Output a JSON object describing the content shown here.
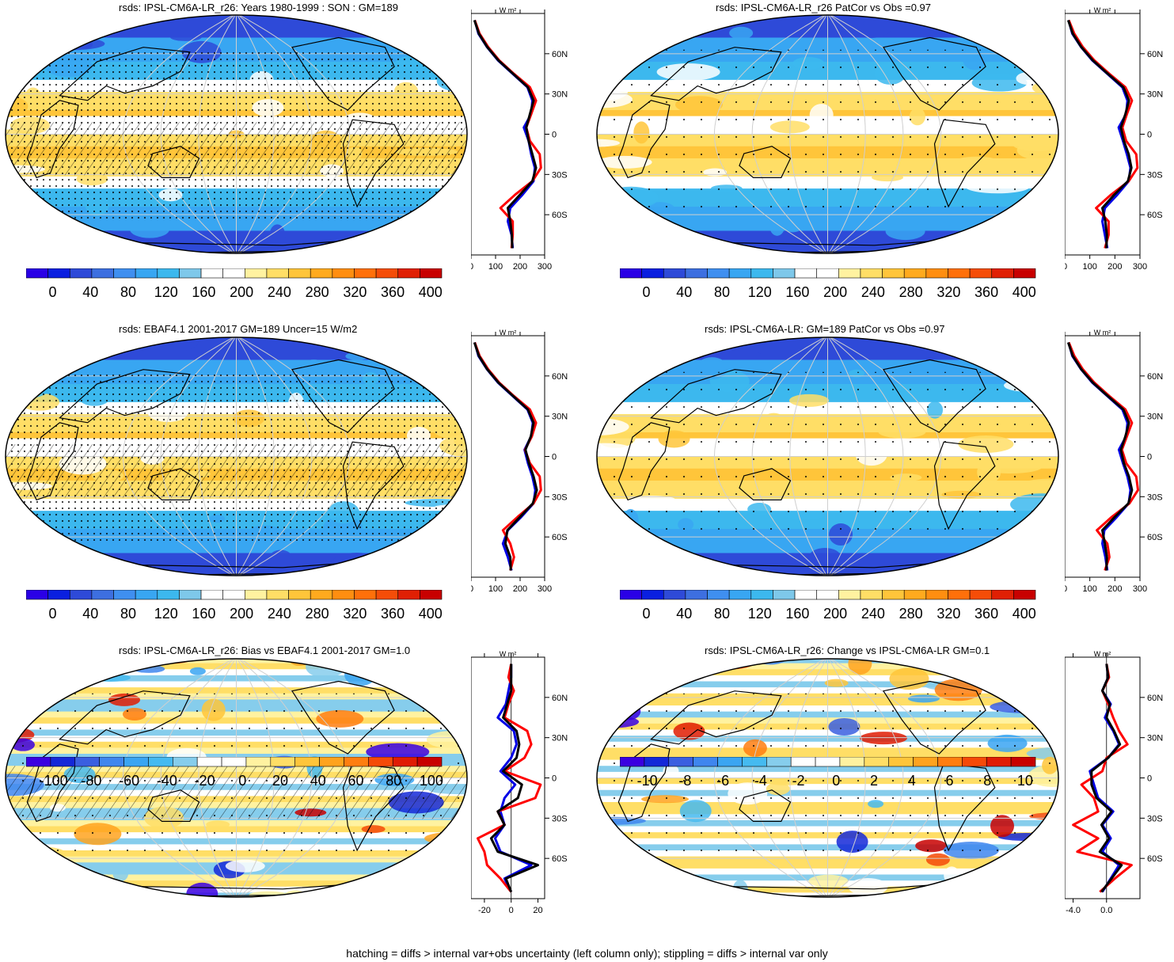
{
  "footer": "hatching = diffs > internal var+obs uncertainty (left column only); stippling = diffs > internal var only",
  "colors": {
    "seq": [
      "#2a00e6",
      "#0a1fe0",
      "#2e4ad8",
      "#3d6fe0",
      "#3f8ff0",
      "#38a6f2",
      "#3cb8ee",
      "#7ec8ea",
      "#ffffff",
      "#ffffff",
      "#fff2a0",
      "#ffde66",
      "#ffc53a",
      "#ffaa1e",
      "#ff8e10",
      "#ff700a",
      "#f54d08",
      "#e02004",
      "#c80000"
    ],
    "div": [
      "#3a00e0",
      "#1428d8",
      "#3a5fe0",
      "#3f86ee",
      "#3aa5f2",
      "#45baf0",
      "#86cdec",
      "#ffffff",
      "#ffffff",
      "#fff2a0",
      "#ffde66",
      "#ffc53a",
      "#ffa31e",
      "#ff7e10",
      "#f54a08",
      "#e01c04",
      "#c80000"
    ],
    "model": "#0000e6",
    "obs": "#ff0000",
    "mean": "#000000"
  },
  "panels": [
    {
      "id": "p1",
      "title": "rsds: IPSL-CM6A-LR_r26: Years 1980-1999 : SON : GM=189",
      "scheme": "seq",
      "hatch": true,
      "stipple": "dense",
      "cbar_labels": [
        "0",
        "40",
        "80",
        "120",
        "160",
        "200",
        "240",
        "280",
        "320",
        "360",
        "400"
      ],
      "profile_xticks": [
        "0",
        "100",
        "200",
        "300"
      ],
      "profile_unit": "W m²",
      "lat_labels": [
        "60N",
        "30N",
        "0",
        "30S",
        "60S"
      ],
      "chart_data": {
        "type": "line",
        "xlim": [
          0,
          300
        ],
        "ylabel": "latitude",
        "lat": [
          -85,
          -75,
          -65,
          -55,
          -45,
          -35,
          -25,
          -15,
          -5,
          5,
          15,
          25,
          35,
          45,
          55,
          65,
          75,
          85
        ],
        "series": [
          {
            "name": "model",
            "values": [
              170,
              165,
              150,
              160,
              210,
              255,
              260,
              245,
              235,
              215,
              245,
              250,
              230,
              170,
              110,
              65,
              30,
              15
            ]
          },
          {
            "name": "obs",
            "values": [
              165,
              170,
              170,
              120,
              180,
              250,
              285,
              280,
              240,
              225,
              245,
              265,
              240,
              175,
              115,
              70,
              35,
              15
            ]
          },
          {
            "name": "mean",
            "values": [
              168,
              166,
              160,
              150,
              200,
              250,
              265,
              250,
              235,
              225,
              240,
              255,
              232,
              172,
              112,
              66,
              32,
              14
            ]
          }
        ]
      }
    },
    {
      "id": "p2",
      "title": "rsds: IPSL-CM6A-LR_r26 PatCor vs Obs =0.97",
      "scheme": "seq",
      "hatch": false,
      "stipple": "sparse",
      "cbar_labels": [
        "0",
        "40",
        "80",
        "120",
        "160",
        "200",
        "240",
        "280",
        "320",
        "360",
        "400"
      ],
      "profile_xticks": [
        "0",
        "100",
        "200",
        "300"
      ],
      "profile_unit": "W m²",
      "lat_labels": [
        "60N",
        "30N",
        "0",
        "30S",
        "60S"
      ],
      "chart_data": {
        "type": "line",
        "xlim": [
          0,
          300
        ],
        "lat": [
          -85,
          -75,
          -65,
          -55,
          -45,
          -35,
          -25,
          -15,
          -5,
          5,
          15,
          25,
          35,
          45,
          55,
          65,
          75,
          85
        ],
        "series": [
          {
            "name": "model",
            "values": [
              170,
              160,
              150,
              160,
              210,
              255,
              262,
              248,
              232,
              215,
              245,
              250,
              230,
              170,
              110,
              65,
              30,
              15
            ]
          },
          {
            "name": "obs",
            "values": [
              160,
              175,
              175,
              125,
              185,
              255,
              290,
              285,
              245,
              230,
              248,
              268,
              242,
              178,
              118,
              72,
              38,
              16
            ]
          },
          {
            "name": "mean",
            "values": [
              166,
              168,
              162,
              150,
              198,
              252,
              266,
              255,
              236,
              224,
              242,
              256,
              234,
              172,
              112,
              66,
              32,
              14
            ]
          }
        ]
      }
    },
    {
      "id": "p3",
      "title": "rsds: EBAF4.1 2001-2017 GM=189 Uncer=15 W/m2",
      "scheme": "seq",
      "hatch": true,
      "stipple": "dense",
      "cbar_labels": [
        "0",
        "40",
        "80",
        "120",
        "160",
        "200",
        "240",
        "280",
        "320",
        "360",
        "400"
      ],
      "profile_xticks": [
        "0",
        "100",
        "200",
        "300"
      ],
      "profile_unit": "W m²",
      "lat_labels": [
        "60N",
        "30N",
        "0",
        "30S",
        "60S"
      ],
      "chart_data": {
        "type": "line",
        "xlim": [
          0,
          300
        ],
        "lat": [
          -85,
          -75,
          -65,
          -55,
          -45,
          -35,
          -25,
          -15,
          -5,
          5,
          15,
          25,
          35,
          45,
          55,
          65,
          75,
          85
        ],
        "series": [
          {
            "name": "model",
            "values": [
              165,
              150,
              130,
              150,
              205,
              255,
              262,
              250,
              232,
              218,
              245,
              252,
              230,
              170,
              110,
              65,
              30,
              15
            ]
          },
          {
            "name": "obs",
            "values": [
              160,
              175,
              160,
              130,
              190,
              255,
              285,
              280,
              240,
              220,
              248,
              265,
              240,
              175,
              115,
              70,
              35,
              15
            ]
          },
          {
            "name": "mean",
            "values": [
              162,
              160,
              140,
              148,
              200,
              252,
              268,
              255,
              236,
              222,
              244,
              255,
              232,
              172,
              112,
              66,
              32,
              14
            ]
          }
        ]
      }
    },
    {
      "id": "p4",
      "title": "rsds: IPSL-CM6A-LR: GM=189 PatCor vs Obs =0.97",
      "scheme": "seq",
      "hatch": false,
      "stipple": "sparse",
      "cbar_labels": [
        "0",
        "40",
        "80",
        "120",
        "160",
        "200",
        "240",
        "280",
        "320",
        "360",
        "400"
      ],
      "profile_xticks": [
        "0",
        "100",
        "200",
        "300"
      ],
      "profile_unit": "W m²",
      "lat_labels": [
        "60N",
        "30N",
        "0",
        "30S",
        "60S"
      ],
      "chart_data": {
        "type": "line",
        "xlim": [
          0,
          300
        ],
        "lat": [
          -85,
          -75,
          -65,
          -55,
          -45,
          -35,
          -25,
          -15,
          -5,
          5,
          15,
          25,
          35,
          45,
          55,
          65,
          75,
          85
        ],
        "series": [
          {
            "name": "model",
            "values": [
              170,
              162,
              150,
              158,
              208,
              255,
              262,
              250,
              232,
              216,
              245,
              250,
              230,
              170,
              110,
              65,
              30,
              15
            ]
          },
          {
            "name": "obs",
            "values": [
              160,
              178,
              170,
              128,
              188,
              258,
              292,
              285,
              245,
              228,
              248,
              268,
              242,
              178,
              118,
              72,
              38,
              16
            ]
          },
          {
            "name": "mean",
            "values": [
              166,
              168,
              160,
              150,
              200,
              254,
              268,
              256,
              236,
              224,
              242,
              256,
              234,
              172,
              112,
              66,
              32,
              14
            ]
          }
        ]
      }
    },
    {
      "id": "p5",
      "title": "rsds: IPSL-CM6A-LR_r26: Bias vs EBAF4.1 2001-2017  GM=1.0",
      "scheme": "div",
      "hatch": true,
      "stipple": "medium",
      "cbar_labels": [
        "-100",
        "-80",
        "-60",
        "-40",
        "-20",
        "0",
        "20",
        "40",
        "60",
        "80",
        "100"
      ],
      "profile_xticks": [
        "-20",
        "0",
        "20"
      ],
      "profile_unit": "W m²",
      "lat_labels": [
        "60N",
        "30N",
        "0",
        "30S",
        "60S"
      ],
      "chart_data": {
        "type": "line",
        "xlim": [
          -30,
          25
        ],
        "lat": [
          -85,
          -75,
          -65,
          -55,
          -45,
          -35,
          -25,
          -15,
          -5,
          5,
          15,
          25,
          35,
          45,
          55,
          65,
          75,
          85
        ],
        "series": [
          {
            "name": "model",
            "values": [
              0,
              -5,
              15,
              -8,
              -12,
              -5,
              -8,
              -5,
              3,
              -8,
              0,
              4,
              2,
              -10,
              -4,
              -2,
              0,
              0
            ]
          },
          {
            "name": "obs",
            "values": [
              0,
              -8,
              -18,
              -20,
              -25,
              -5,
              -10,
              18,
              22,
              -5,
              10,
              15,
              12,
              -5,
              -2,
              2,
              -2,
              0
            ]
          },
          {
            "name": "mean",
            "values": [
              0,
              -4,
              20,
              -10,
              -15,
              -5,
              -10,
              5,
              8,
              -6,
              4,
              6,
              4,
              -6,
              -3,
              0,
              0,
              0
            ]
          }
        ]
      }
    },
    {
      "id": "p6",
      "title": "rsds: IPSL-CM6A-LR_r26: Change vs IPSL-CM6A-LR GM=0.1",
      "scheme": "div",
      "hatch": false,
      "stipple": "sparse",
      "cbar_labels": [
        "-10",
        "-8",
        "-6",
        "-4",
        "-2",
        "0",
        "2",
        "4",
        "6",
        "8",
        "10"
      ],
      "profile_xticks": [
        "-4.0",
        "0.0"
      ],
      "profile_unit": "W m²",
      "lat_labels": [
        "60N",
        "30N",
        "0",
        "30S",
        "60S"
      ],
      "chart_data": {
        "type": "line",
        "xlim": [
          -5,
          4
        ],
        "lat": [
          -85,
          -75,
          -65,
          -55,
          -45,
          -35,
          -25,
          -15,
          -5,
          5,
          15,
          25,
          35,
          45,
          55,
          65,
          75,
          85
        ],
        "series": [
          {
            "name": "model",
            "values": [
              -0.5,
              0.5,
              1.5,
              -0.5,
              0.5,
              -0.5,
              0.8,
              -1.0,
              -1.5,
              -2.0,
              0.2,
              1.5,
              0.8,
              -0.2,
              0.5,
              -0.5,
              0.2,
              0
            ]
          },
          {
            "name": "obs",
            "values": [
              -0.8,
              1.0,
              3.0,
              -3.5,
              -1.0,
              -4.0,
              -1.0,
              -1.5,
              -3.0,
              -0.5,
              0.0,
              2.5,
              1.5,
              0.8,
              0.2,
              -0.5,
              0.3,
              0
            ]
          },
          {
            "name": "mean",
            "values": [
              -0.6,
              0.6,
              1.8,
              -0.8,
              0.3,
              -0.6,
              0.6,
              -1.2,
              -1.8,
              -1.8,
              0.2,
              1.6,
              0.9,
              0.0,
              0.4,
              -0.5,
              0.2,
              0
            ]
          }
        ]
      }
    }
  ]
}
